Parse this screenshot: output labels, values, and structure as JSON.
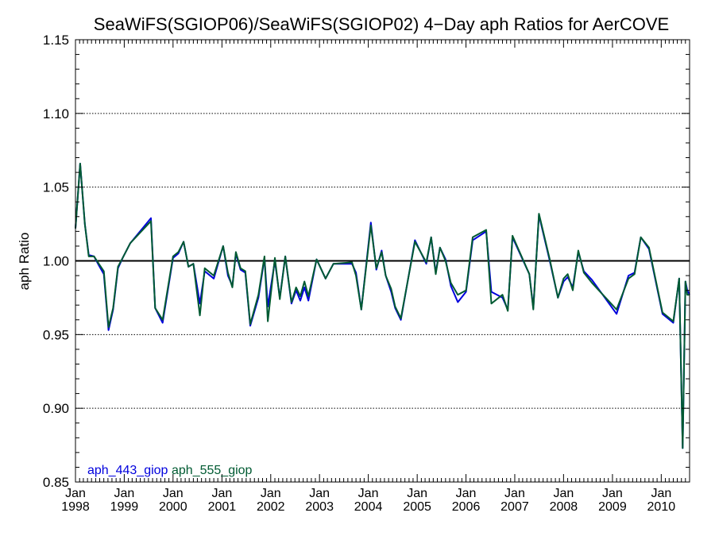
{
  "chart_data": {
    "type": "line",
    "title": "SeaWiFS(SGIOP06)/SeaWiFS(SGIOP02) 4−Day aph Ratios for AerCOVE",
    "xlabel": "",
    "ylabel": "aph Ratio",
    "xlim": [
      "1998-01-01",
      "2010-08-01"
    ],
    "ylim": [
      0.85,
      1.15
    ],
    "yticks": [
      {
        "value": 0.85,
        "label": "0.85"
      },
      {
        "value": 0.9,
        "label": "0.90"
      },
      {
        "value": 0.95,
        "label": "0.95"
      },
      {
        "value": 1.0,
        "label": "1.00"
      },
      {
        "value": 1.05,
        "label": "1.05"
      },
      {
        "value": 1.1,
        "label": "1.10"
      },
      {
        "value": 1.15,
        "label": "1.15"
      }
    ],
    "xticks": [
      {
        "date": "1998-01-01",
        "month": "Jan",
        "year": "1998"
      },
      {
        "date": "1999-01-01",
        "month": "Jan",
        "year": "1999"
      },
      {
        "date": "2000-01-01",
        "month": "Jan",
        "year": "2000"
      },
      {
        "date": "2001-01-01",
        "month": "Jan",
        "year": "2001"
      },
      {
        "date": "2002-01-01",
        "month": "Jan",
        "year": "2002"
      },
      {
        "date": "2003-01-01",
        "month": "Jan",
        "year": "2003"
      },
      {
        "date": "2004-01-01",
        "month": "Jan",
        "year": "2004"
      },
      {
        "date": "2005-01-01",
        "month": "Jan",
        "year": "2005"
      },
      {
        "date": "2006-01-01",
        "month": "Jan",
        "year": "2006"
      },
      {
        "date": "2007-01-01",
        "month": "Jan",
        "year": "2007"
      },
      {
        "date": "2008-01-01",
        "month": "Jan",
        "year": "2008"
      },
      {
        "date": "2009-01-01",
        "month": "Jan",
        "year": "2009"
      },
      {
        "date": "2010-01-01",
        "month": "Jan",
        "year": "2010"
      }
    ],
    "grid": {
      "dotted_y_at": [
        0.9,
        0.95,
        1.05,
        1.1
      ],
      "solid_reference_y": 1.0
    },
    "legend": {
      "placement": "bottom-left"
    },
    "series": [
      {
        "name": "aph_443_giop",
        "color": "#0000dd",
        "points": [
          [
            "1998-01-01",
            1.022
          ],
          [
            "1998-02-05",
            1.066
          ],
          [
            "1998-03-12",
            1.025
          ],
          [
            "1998-04-10",
            1.004
          ],
          [
            "1998-05-20",
            1.003
          ],
          [
            "1998-06-25",
            0.997
          ],
          [
            "1998-08-01",
            0.991
          ],
          [
            "1998-09-05",
            0.953
          ],
          [
            "1998-10-10",
            0.967
          ],
          [
            "1998-11-15",
            0.995
          ],
          [
            "1998-12-20",
            1.002
          ],
          [
            "1999-02-15",
            1.012
          ],
          [
            "1999-07-20",
            1.029
          ],
          [
            "1999-08-20",
            0.968
          ],
          [
            "1999-10-15",
            0.958
          ],
          [
            "2000-01-01",
            1.002
          ],
          [
            "2000-02-10",
            1.005
          ],
          [
            "2000-03-20",
            1.013
          ],
          [
            "2000-04-25",
            0.996
          ],
          [
            "2000-06-01",
            0.998
          ],
          [
            "2000-07-20",
            0.971
          ],
          [
            "2000-08-25",
            0.993
          ],
          [
            "2000-11-01",
            0.988
          ],
          [
            "2001-01-10",
            1.01
          ],
          [
            "2001-02-15",
            0.99
          ],
          [
            "2001-03-20",
            0.983
          ],
          [
            "2001-04-15",
            1.005
          ],
          [
            "2001-05-20",
            0.994
          ],
          [
            "2001-06-25",
            0.992
          ],
          [
            "2001-08-01",
            0.956
          ],
          [
            "2001-10-01",
            0.975
          ],
          [
            "2001-11-15",
            1.002
          ],
          [
            "2001-12-10",
            0.969
          ],
          [
            "2002-02-01",
            1.0
          ],
          [
            "2002-03-10",
            0.975
          ],
          [
            "2002-04-20",
            1.003
          ],
          [
            "2002-06-05",
            0.971
          ],
          [
            "2002-07-10",
            0.98
          ],
          [
            "2002-08-10",
            0.973
          ],
          [
            "2002-09-10",
            0.982
          ],
          [
            "2002-10-10",
            0.973
          ],
          [
            "2002-12-10",
            1.001
          ],
          [
            "2003-02-15",
            0.988
          ],
          [
            "2003-04-15",
            0.998
          ],
          [
            "2003-09-01",
            0.998
          ],
          [
            "2003-10-01",
            0.992
          ],
          [
            "2003-11-10",
            0.967
          ],
          [
            "2004-01-20",
            1.026
          ],
          [
            "2004-03-01",
            0.994
          ],
          [
            "2004-04-10",
            1.007
          ],
          [
            "2004-05-10",
            0.99
          ],
          [
            "2004-06-20",
            0.979
          ],
          [
            "2004-07-20",
            0.968
          ],
          [
            "2004-09-01",
            0.96
          ],
          [
            "2004-12-15",
            1.014
          ],
          [
            "2005-03-10",
            0.998
          ],
          [
            "2005-04-15",
            1.016
          ],
          [
            "2005-05-20",
            0.992
          ],
          [
            "2005-06-20",
            1.009
          ],
          [
            "2005-08-01",
            1.001
          ],
          [
            "2005-09-10",
            0.983
          ],
          [
            "2005-11-01",
            0.972
          ],
          [
            "2006-01-01",
            0.979
          ],
          [
            "2006-02-20",
            1.014
          ],
          [
            "2006-06-01",
            1.02
          ],
          [
            "2006-07-10",
            0.979
          ],
          [
            "2006-10-01",
            0.975
          ],
          [
            "2006-11-10",
            0.967
          ],
          [
            "2006-12-15",
            1.016
          ],
          [
            "2007-04-20",
            0.991
          ],
          [
            "2007-05-20",
            0.968
          ],
          [
            "2007-07-01",
            1.031
          ],
          [
            "2007-09-20",
            1.0
          ],
          [
            "2007-11-20",
            0.975
          ],
          [
            "2008-01-01",
            0.986
          ],
          [
            "2008-02-01",
            0.989
          ],
          [
            "2008-03-10",
            0.982
          ],
          [
            "2008-04-20",
            1.006
          ],
          [
            "2008-06-01",
            0.993
          ],
          [
            "2008-08-01",
            0.987
          ],
          [
            "2009-02-01",
            0.964
          ],
          [
            "2009-05-01",
            0.99
          ],
          [
            "2009-06-15",
            0.992
          ],
          [
            "2009-08-01",
            1.016
          ],
          [
            "2009-10-01",
            1.008
          ],
          [
            "2010-01-10",
            0.964
          ],
          [
            "2010-04-01",
            0.958
          ],
          [
            "2010-05-15",
            0.988
          ],
          [
            "2010-06-10",
            0.873
          ],
          [
            "2010-07-01",
            0.986
          ],
          [
            "2010-07-15",
            0.98
          ],
          [
            "2010-08-01",
            0.977
          ]
        ]
      },
      {
        "name": "aph_555_giop",
        "color": "#005a32",
        "points": [
          [
            "1998-01-01",
            1.022
          ],
          [
            "1998-02-05",
            1.066
          ],
          [
            "1998-03-12",
            1.025
          ],
          [
            "1998-04-10",
            1.003
          ],
          [
            "1998-05-20",
            1.003
          ],
          [
            "1998-06-25",
            0.998
          ],
          [
            "1998-08-01",
            0.993
          ],
          [
            "1998-09-05",
            0.955
          ],
          [
            "1998-10-10",
            0.968
          ],
          [
            "1998-11-15",
            0.996
          ],
          [
            "1998-12-20",
            1.002
          ],
          [
            "1999-02-15",
            1.012
          ],
          [
            "1999-07-20",
            1.027
          ],
          [
            "1999-08-20",
            0.968
          ],
          [
            "1999-10-15",
            0.96
          ],
          [
            "2000-01-01",
            1.003
          ],
          [
            "2000-02-10",
            1.006
          ],
          [
            "2000-03-20",
            1.013
          ],
          [
            "2000-04-25",
            0.996
          ],
          [
            "2000-06-01",
            0.998
          ],
          [
            "2000-07-20",
            0.963
          ],
          [
            "2000-08-25",
            0.995
          ],
          [
            "2000-11-01",
            0.99
          ],
          [
            "2001-01-10",
            1.01
          ],
          [
            "2001-02-15",
            0.992
          ],
          [
            "2001-03-20",
            0.982
          ],
          [
            "2001-04-15",
            1.006
          ],
          [
            "2001-05-20",
            0.995
          ],
          [
            "2001-06-25",
            0.993
          ],
          [
            "2001-08-01",
            0.957
          ],
          [
            "2001-10-01",
            0.977
          ],
          [
            "2001-11-15",
            1.003
          ],
          [
            "2001-12-10",
            0.959
          ],
          [
            "2002-02-01",
            1.002
          ],
          [
            "2002-03-10",
            0.974
          ],
          [
            "2002-04-20",
            1.003
          ],
          [
            "2002-06-05",
            0.972
          ],
          [
            "2002-07-10",
            0.982
          ],
          [
            "2002-08-10",
            0.976
          ],
          [
            "2002-09-10",
            0.986
          ],
          [
            "2002-10-10",
            0.976
          ],
          [
            "2002-12-10",
            1.001
          ],
          [
            "2003-02-15",
            0.988
          ],
          [
            "2003-04-15",
            0.998
          ],
          [
            "2003-09-01",
            0.999
          ],
          [
            "2003-10-01",
            0.99
          ],
          [
            "2003-11-10",
            0.967
          ],
          [
            "2004-01-20",
            1.024
          ],
          [
            "2004-03-01",
            0.995
          ],
          [
            "2004-04-10",
            1.006
          ],
          [
            "2004-05-10",
            0.99
          ],
          [
            "2004-06-20",
            0.981
          ],
          [
            "2004-07-20",
            0.969
          ],
          [
            "2004-09-01",
            0.961
          ],
          [
            "2004-12-15",
            1.013
          ],
          [
            "2005-03-10",
            0.999
          ],
          [
            "2005-04-15",
            1.016
          ],
          [
            "2005-05-20",
            0.991
          ],
          [
            "2005-06-20",
            1.009
          ],
          [
            "2005-08-01",
            1.0
          ],
          [
            "2005-09-10",
            0.985
          ],
          [
            "2005-11-01",
            0.977
          ],
          [
            "2006-01-01",
            0.98
          ],
          [
            "2006-02-20",
            1.016
          ],
          [
            "2006-06-01",
            1.021
          ],
          [
            "2006-07-10",
            0.971
          ],
          [
            "2006-10-01",
            0.977
          ],
          [
            "2006-11-10",
            0.966
          ],
          [
            "2006-12-15",
            1.017
          ],
          [
            "2007-04-20",
            0.991
          ],
          [
            "2007-05-20",
            0.967
          ],
          [
            "2007-07-01",
            1.032
          ],
          [
            "2007-09-20",
            1.001
          ],
          [
            "2007-11-20",
            0.975
          ],
          [
            "2008-01-01",
            0.988
          ],
          [
            "2008-02-01",
            0.991
          ],
          [
            "2008-03-10",
            0.98
          ],
          [
            "2008-04-20",
            1.007
          ],
          [
            "2008-06-01",
            0.992
          ],
          [
            "2008-08-01",
            0.985
          ],
          [
            "2009-02-01",
            0.967
          ],
          [
            "2009-05-01",
            0.988
          ],
          [
            "2009-06-15",
            0.991
          ],
          [
            "2009-08-01",
            1.016
          ],
          [
            "2009-10-01",
            1.009
          ],
          [
            "2010-01-10",
            0.965
          ],
          [
            "2010-04-01",
            0.959
          ],
          [
            "2010-05-15",
            0.988
          ],
          [
            "2010-06-10",
            0.873
          ],
          [
            "2010-07-01",
            0.986
          ],
          [
            "2010-07-15",
            0.977
          ],
          [
            "2010-08-01",
            0.977
          ]
        ]
      }
    ]
  }
}
